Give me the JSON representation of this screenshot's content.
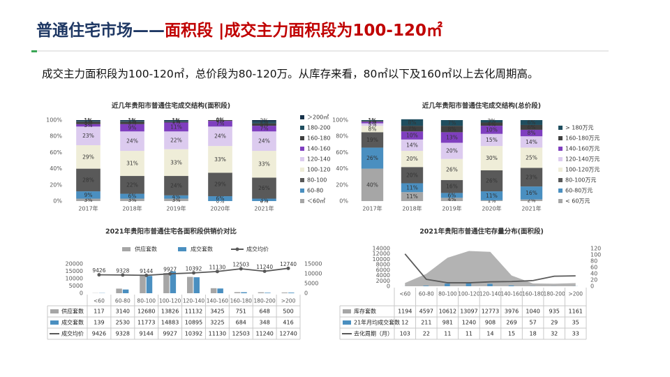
{
  "header": {
    "title_lead": "普通住宅市场——",
    "title_main": "面积段 |成交主力面积段为100-120㎡",
    "summary": "成交主力面积段为100-120㎡，总价段为80-120万。从库存来看，80㎡以下及160㎡以上去化周期高。"
  },
  "chart_data": [
    {
      "type": "stacked_bar",
      "title": "近几年贵阳市普通住宅成交结构(面积段)",
      "categories": [
        "2017年",
        "2018年",
        "2019年",
        "2020年",
        "2021年"
      ],
      "ylim": [
        0,
        100
      ],
      "yticks": [
        {
          "value": 0,
          "label": "0%"
        },
        {
          "value": 20,
          "label": "20%"
        },
        {
          "value": 40,
          "label": "40%"
        },
        {
          "value": 60,
          "label": "60%"
        },
        {
          "value": 80,
          "label": "80%"
        },
        {
          "value": 100,
          "label": "100%"
        }
      ],
      "grid": false,
      "legend_position": "right",
      "series": [
        {
          "name": "＜60㎡",
          "color": "#a6a6a6",
          "values": [
            3,
            3,
            3,
            0,
            0
          ],
          "value_labels": [
            "3%",
            "3%",
            "3%",
            "0%",
            "0%"
          ]
        },
        {
          "name": "60-80",
          "color": "#4a8fc0",
          "values": [
            9,
            6,
            4,
            6,
            3
          ],
          "value_labels": [
            "9%",
            "6%",
            "4%",
            "6%",
            "3%"
          ]
        },
        {
          "name": "80-100",
          "color": "#595959",
          "values": [
            28,
            22,
            24,
            29,
            26
          ],
          "value_labels": [
            "28%",
            "22%",
            "24%",
            "29%",
            "26%"
          ]
        },
        {
          "name": "100-120",
          "color": "#efedd8",
          "values": [
            29,
            31,
            33,
            33,
            33
          ],
          "value_labels": [
            "29%",
            "31%",
            "33%",
            "33%",
            "33%"
          ]
        },
        {
          "name": "120-140",
          "color": "#dccbef",
          "values": [
            23,
            24,
            22,
            24,
            24
          ],
          "value_labels": [
            "23%",
            "24%",
            "22%",
            "24%",
            "24%"
          ]
        },
        {
          "name": "140-160",
          "color": "#7f3fbf",
          "values": [
            3,
            9,
            11,
            7,
            7
          ],
          "value_labels": [
            "3%",
            "9%",
            "11%",
            "7%",
            "7%"
          ]
        },
        {
          "name": "160-180",
          "color": "#404040",
          "values": [
            3,
            3,
            1,
            1,
            3
          ],
          "value_labels": [
            "3%",
            "3%",
            "1%",
            "1%",
            "3%"
          ]
        },
        {
          "name": "180-200",
          "color": "#1f4e5f",
          "values": [
            1,
            1,
            1,
            0,
            2
          ],
          "value_labels": [
            "1%",
            "1%",
            "1%",
            "0%",
            "2%"
          ]
        },
        {
          "name": "＞200㎡",
          "color": "#17324a",
          "values": [
            1,
            1,
            1,
            0,
            2
          ],
          "value_labels": [
            "1%",
            "1%",
            "1%",
            "0%",
            "2%"
          ]
        }
      ]
    },
    {
      "type": "stacked_bar",
      "title": "近几年贵阳市普通住宅成交结构(总价段)",
      "categories": [
        "2017年",
        "2018年",
        "2019年",
        "2020年",
        "2021年"
      ],
      "ylim": [
        0,
        100
      ],
      "yticks": [
        {
          "value": 0,
          "label": "0%"
        },
        {
          "value": 20,
          "label": "20%"
        },
        {
          "value": 40,
          "label": "40%"
        },
        {
          "value": 60,
          "label": "60%"
        },
        {
          "value": 80,
          "label": "80%"
        },
        {
          "value": 100,
          "label": "100%"
        }
      ],
      "grid": false,
      "legend_position": "right",
      "series": [
        {
          "name": "< 60万元",
          "color": "#a6a6a6",
          "values": [
            40,
            11,
            4,
            1,
            2
          ],
          "value_labels": [
            "40%",
            "11%",
            "4%",
            "1%",
            "2%"
          ]
        },
        {
          "name": "60-80万元",
          "color": "#4a8fc0",
          "values": [
            26,
            11,
            6,
            11,
            16
          ],
          "value_labels": [
            "26%",
            "11%",
            "6%",
            "11%",
            "16%"
          ]
        },
        {
          "name": "80-100万元",
          "color": "#595959",
          "values": [
            19,
            20,
            16,
            26,
            23
          ],
          "value_labels": [
            "19%",
            "20%",
            "16%",
            "26%",
            "23%"
          ]
        },
        {
          "name": "100-120万元",
          "color": "#efedd8",
          "values": [
            8,
            20,
            26,
            30,
            25
          ],
          "value_labels": [
            "8%",
            "20%",
            "26%",
            "30%",
            "25%"
          ]
        },
        {
          "name": "120-140万元",
          "color": "#dccbef",
          "values": [
            3,
            14,
            20,
            15,
            14
          ],
          "value_labels": [
            "3%",
            "14%",
            "20%",
            "15%",
            "14%"
          ]
        },
        {
          "name": "140-160万元",
          "color": "#7f3fbf",
          "values": [
            2,
            10,
            13,
            10,
            8
          ],
          "value_labels": [
            "2%",
            "10%",
            "13%",
            "10%",
            "8%"
          ]
        },
        {
          "name": "160-180万元",
          "color": "#404040",
          "values": [
            1,
            7,
            8,
            4,
            6
          ],
          "value_labels": [
            "1%",
            "7%",
            "8%",
            "4%",
            "6%"
          ]
        },
        {
          "name": "> 180万元",
          "color": "#1f4e5f",
          "values": [
            1,
            8,
            7,
            3,
            6
          ],
          "value_labels": [
            "1%",
            "8%",
            "7%",
            "3%",
            "6%"
          ]
        }
      ]
    },
    {
      "type": "combo",
      "title": "2021年贵阳市普通住宅各面积段供销价对比",
      "categories": [
        "<60",
        "60-80",
        "80-100",
        "100-120",
        "120-140",
        "140-160",
        "160-180",
        "180-200",
        ">200"
      ],
      "ylim": [
        0,
        20000
      ],
      "yticks": [
        0,
        5000,
        10000,
        15000,
        20000
      ],
      "y2lim": [
        0,
        15000
      ],
      "y2ticks": [
        0,
        5000,
        10000,
        15000
      ],
      "legend_position": "top",
      "data_table": true,
      "series": [
        {
          "name": "供应套数",
          "kind": "bar",
          "color": "#a6a6a6",
          "values": [
            117,
            3140,
            12680,
            13826,
            11132,
            3425,
            751,
            648,
            500
          ]
        },
        {
          "name": "成交套数",
          "kind": "bar",
          "color": "#4a8fc0",
          "values": [
            139,
            2530,
            11773,
            14883,
            10895,
            3225,
            684,
            348,
            416
          ]
        },
        {
          "name": "成交均价",
          "kind": "line",
          "axis": "y2",
          "color": "#595959",
          "markers": true,
          "data_labels": true,
          "values": [
            9426,
            9328,
            9144,
            9927,
            10392,
            11130,
            12503,
            11240,
            12740
          ]
        }
      ]
    },
    {
      "type": "combo",
      "title": "2021年贵阳市普通住宅存量分布(面积段)",
      "categories": [
        "<60",
        "60-80",
        "80-100",
        "100-120",
        "120-140",
        "140-160",
        "160-180",
        "180-200",
        ">200"
      ],
      "ylim": [
        0,
        14000
      ],
      "yticks": [
        0,
        2000,
        4000,
        6000,
        8000,
        10000,
        12000,
        14000
      ],
      "y2lim": [
        0,
        120
      ],
      "y2ticks": [
        0,
        20,
        40,
        60,
        80,
        100,
        120
      ],
      "legend_position": "none",
      "data_table": true,
      "series": [
        {
          "name": "库存套数",
          "kind": "area",
          "color": "#a6a6a6",
          "values": [
            1194,
            4597,
            10612,
            13097,
            12773,
            3976,
            1040,
            935,
            1161
          ]
        },
        {
          "name": "21年月均成交套数",
          "kind": "bar",
          "color": "#4a8fc0",
          "values": [
            12,
            211,
            981,
            1240,
            908,
            269,
            57,
            29,
            35
          ]
        },
        {
          "name": "去化周期（月）",
          "kind": "line",
          "axis": "y2",
          "color": "#595959",
          "values": [
            103,
            22,
            11,
            11,
            14,
            15,
            18,
            32,
            33
          ]
        }
      ]
    }
  ]
}
